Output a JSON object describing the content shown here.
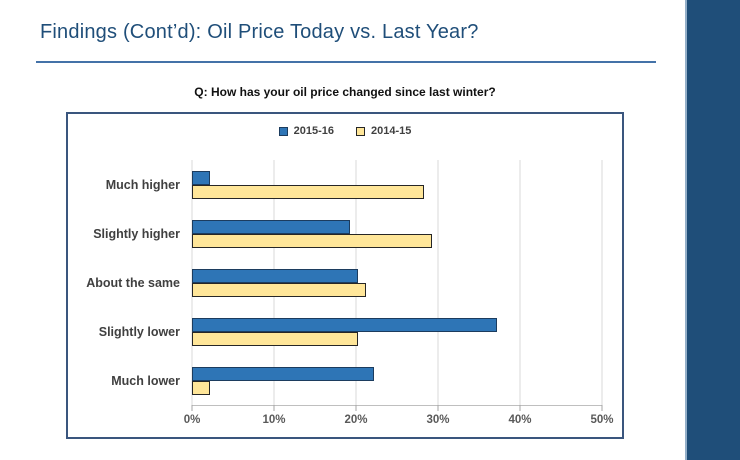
{
  "slide": {
    "title": "Findings (Cont’d): Oil Price Today vs. Last Year?",
    "question": "Q: How has your oil price changed since last winter?"
  },
  "colors": {
    "title_text": "#1F4E79",
    "title_rule": "#4472A8",
    "side_band": "#1F4E79",
    "side_band_edge": "#93AFC9",
    "chart_border": "#3A567E",
    "gridline": "#D9D9D9",
    "axis_text": "#595959",
    "category_text": "#404040"
  },
  "chart_data": {
    "type": "bar",
    "orientation": "horizontal",
    "title": "Q: How has your oil price changed since last winter?",
    "categories": [
      "Much higher",
      "Slightly higher",
      "About the same",
      "Slightly lower",
      "Much lower"
    ],
    "series": [
      {
        "name": "2015-16",
        "color": "#2E75B6",
        "border_color": "#1C3C5E",
        "values": [
          2,
          19,
          20,
          37,
          22
        ]
      },
      {
        "name": "2014-15",
        "color": "#FFE699",
        "border_color": "#262626",
        "values": [
          28,
          29,
          21,
          20,
          2
        ]
      }
    ],
    "x_axis": {
      "min": 0,
      "max": 50,
      "unit": "%",
      "ticks": [
        "0%",
        "10%",
        "20%",
        "30%",
        "40%",
        "50%"
      ]
    },
    "xlabel": "",
    "ylabel": "",
    "legend_position": "top-center",
    "grid": true
  }
}
